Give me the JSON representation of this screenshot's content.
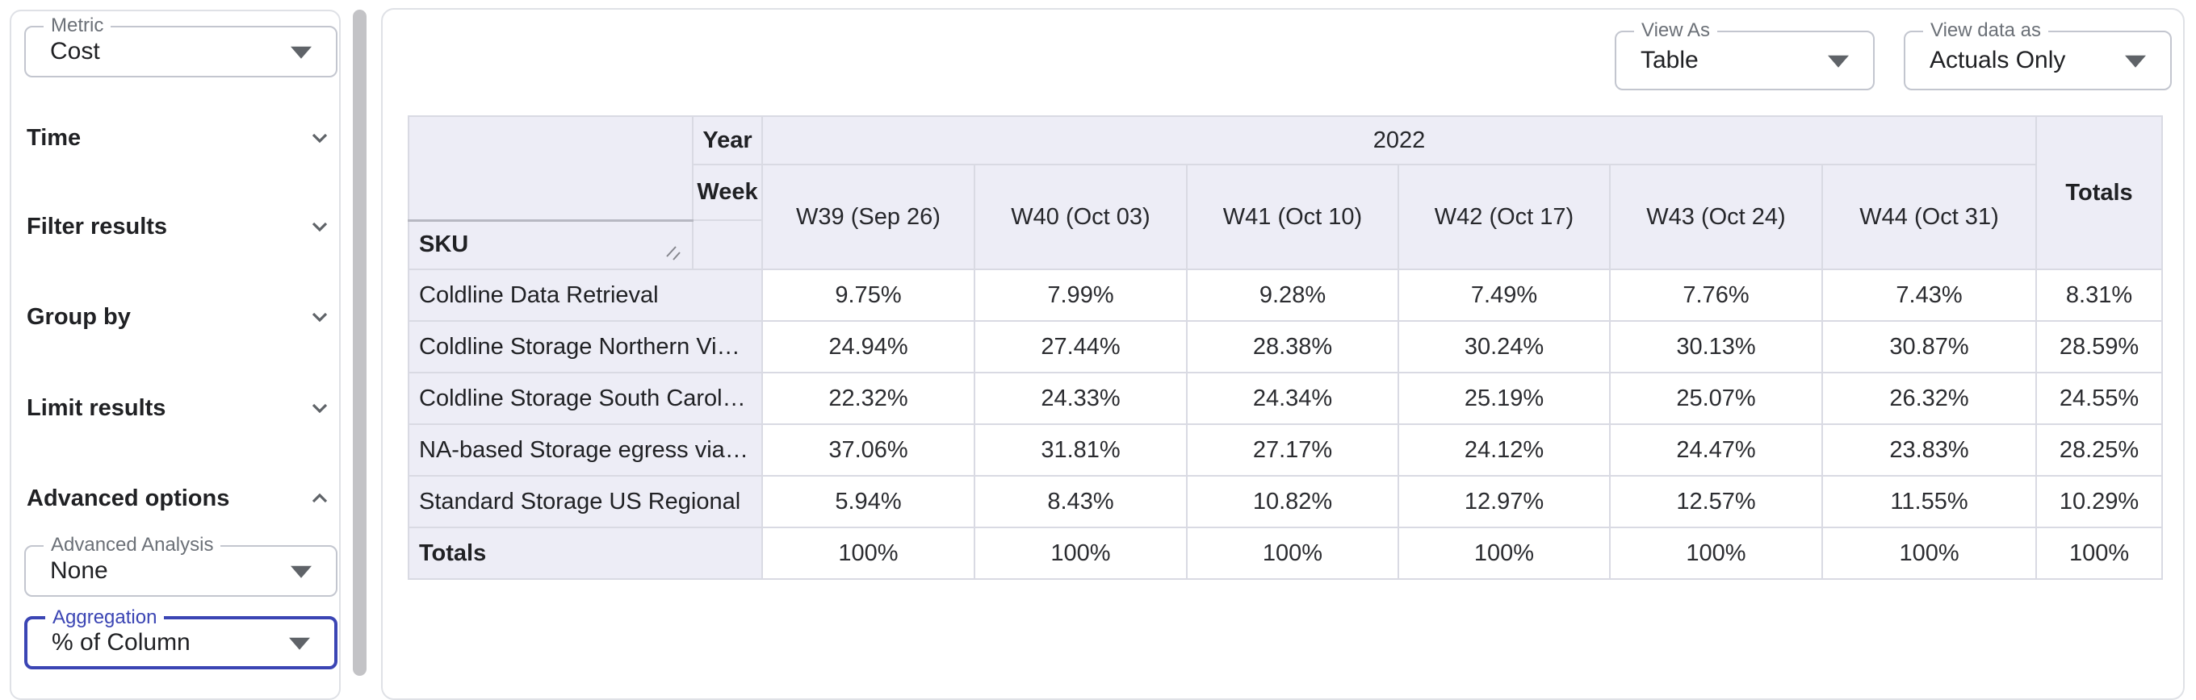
{
  "colors": {
    "accent_indigo": "#3b45b4",
    "panel_border": "#dfe1e6",
    "table_border": "#d9dae3",
    "table_header_bg": "#ededf6",
    "text_primary": "#202124",
    "text_secondary": "#6b7077",
    "scrollbar": "#c3c3c6"
  },
  "sidebar": {
    "metric_field": {
      "label": "Metric",
      "value": "Cost"
    },
    "sections": [
      {
        "label": "Time",
        "state": "collapsed"
      },
      {
        "label": "Filter results",
        "state": "collapsed"
      },
      {
        "label": "Group by",
        "state": "collapsed"
      },
      {
        "label": "Limit results",
        "state": "collapsed"
      }
    ],
    "advanced_section": {
      "label": "Advanced options",
      "state": "expanded"
    },
    "advanced_analysis_field": {
      "label": "Advanced Analysis",
      "value": "None"
    },
    "aggregation_field": {
      "label": "Aggregation",
      "value": "% of Column",
      "focused": true
    }
  },
  "toolbar": {
    "view_as_field": {
      "label": "View As",
      "value": "Table"
    },
    "view_data_as_field": {
      "label": "View data as",
      "value": "Actuals Only"
    }
  },
  "table": {
    "year_row_label": "Year",
    "week_row_label": "Week",
    "sku_label": "SKU",
    "year_group": "2022",
    "totals_column_label": "Totals",
    "week_columns": [
      "W39 (Sep 26)",
      "W40 (Oct 03)",
      "W41 (Oct 10)",
      "W42 (Oct 17)",
      "W43 (Oct 24)",
      "W44 (Oct 31)"
    ],
    "rows": [
      {
        "label": "Coldline Data Retrieval",
        "values": [
          "9.75%",
          "7.99%",
          "9.28%",
          "7.49%",
          "7.76%",
          "7.43%"
        ],
        "total": "8.31%"
      },
      {
        "label": "Coldline Storage Northern Vi…",
        "values": [
          "24.94%",
          "27.44%",
          "28.38%",
          "30.24%",
          "30.13%",
          "30.87%"
        ],
        "total": "28.59%"
      },
      {
        "label": "Coldline Storage South Carol…",
        "values": [
          "22.32%",
          "24.33%",
          "24.34%",
          "25.19%",
          "25.07%",
          "26.32%"
        ],
        "total": "24.55%"
      },
      {
        "label": "NA-based Storage egress via…",
        "values": [
          "37.06%",
          "31.81%",
          "27.17%",
          "24.12%",
          "24.47%",
          "23.83%"
        ],
        "total": "28.25%"
      },
      {
        "label": "Standard Storage US Regional",
        "values": [
          "5.94%",
          "8.43%",
          "10.82%",
          "12.97%",
          "12.57%",
          "11.55%"
        ],
        "total": "10.29%"
      }
    ],
    "totals_row": {
      "label": "Totals",
      "values": [
        "100%",
        "100%",
        "100%",
        "100%",
        "100%",
        "100%"
      ],
      "total": "100%"
    }
  }
}
